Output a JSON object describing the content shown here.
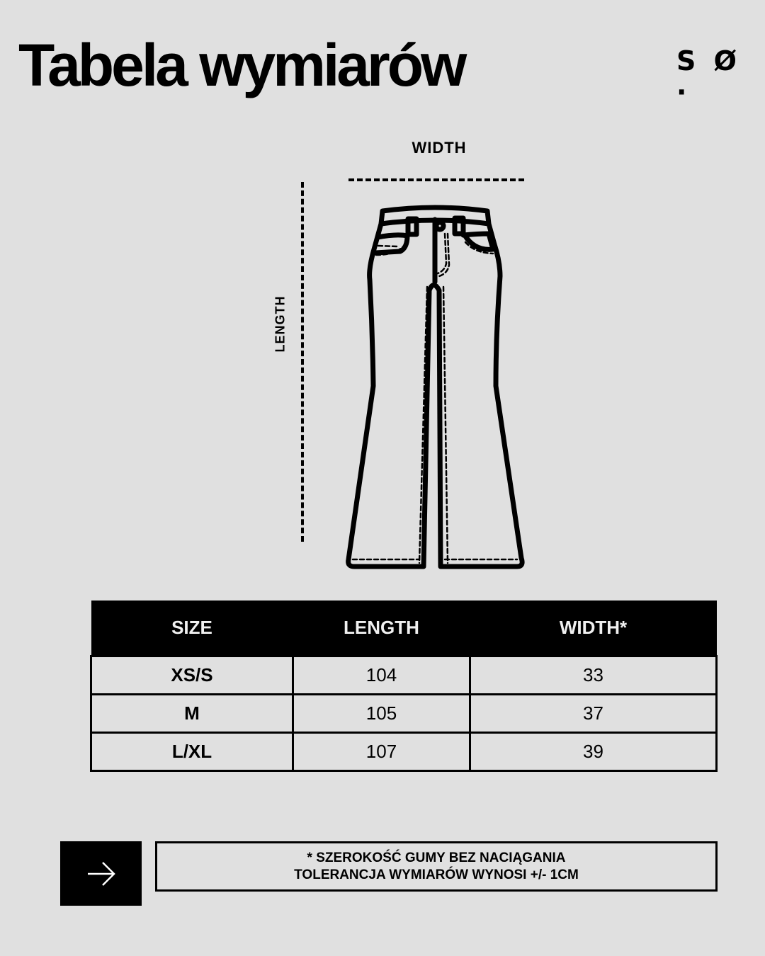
{
  "header": {
    "title": "Tabela wymiarów",
    "logo": "S Ø ·"
  },
  "diagram": {
    "width_label": "WIDTH",
    "length_label": "LENGTH"
  },
  "table": {
    "headers": [
      "SIZE",
      "LENGTH",
      "WIDTH*"
    ],
    "rows": [
      [
        "XS/S",
        "104",
        "33"
      ],
      [
        "M",
        "105",
        "37"
      ],
      [
        "L/XL",
        "107",
        "39"
      ]
    ]
  },
  "note": {
    "line1": "* SZEROKOŚĆ GUMY BEZ NACIĄGANIA",
    "line2": "TOLERANCJA WYMIARÓW WYNOSI +/- 1CM"
  },
  "nav": {
    "icon": "arrow-right-icon"
  },
  "colors": {
    "background": "#e0e0e0",
    "ink": "#000000"
  }
}
